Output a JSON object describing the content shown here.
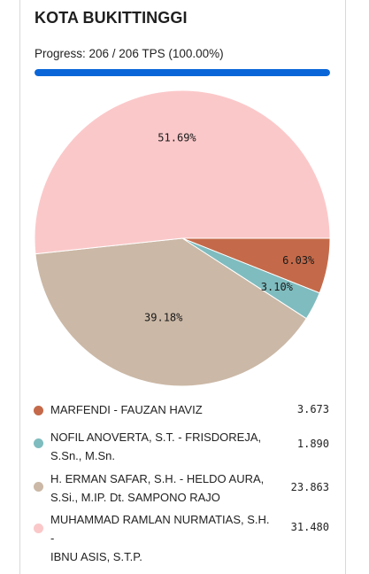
{
  "page": {
    "title": "KOTA BUKITTINGGI"
  },
  "progress": {
    "text": "Progress: 206 / 206 TPS (100.00%)",
    "fraction": 1.0,
    "color": "#0a66d8"
  },
  "chart_data": {
    "type": "pie",
    "slices": [
      {
        "name": "MARFENDI - FAUZAN HAVIZ",
        "value": 3673,
        "value_label": "3.673",
        "percent_label": "6.03%",
        "color": "#c46a4a"
      },
      {
        "name": "NOFIL ANOVERTA, S.T. - FRISDOREJA, S.Sn., M.Sn.",
        "value": 1890,
        "value_label": "1.890",
        "percent_label": "3.10%",
        "color": "#7fbcbf"
      },
      {
        "name": "H. ERMAN SAFAR, S.H. - HELDO AURA, S.Si., M.IP. Dt. SAMPONO RAJO",
        "value": 23863,
        "value_label": "23.863",
        "percent_label": "39.18%",
        "color": "#cbb8a6"
      },
      {
        "name": "MUHAMMAD RAMLAN NURMATIAS, S.H. - IBNU ASIS, S.T.P.",
        "value": 31480,
        "value_label": "31.480",
        "percent_label": "51.69%",
        "color": "#fbc8c9"
      }
    ]
  },
  "legend": {
    "items": [
      {
        "line1": "MARFENDI - FAUZAN HAVIZ",
        "line2": "",
        "value": "3.673"
      },
      {
        "line1": "NOFIL ANOVERTA, S.T. - FRISDOREJA,",
        "line2": "S.Sn., M.Sn.",
        "value": "1.890"
      },
      {
        "line1": "H. ERMAN SAFAR, S.H. - HELDO AURA,",
        "line2": "S.Si., M.IP. Dt. SAMPONO RAJO",
        "value": "23.863"
      },
      {
        "line1": "MUHAMMAD RAMLAN NURMATIAS, S.H. -",
        "line2": "IBNU ASIS, S.T.P.",
        "value": "31.480"
      }
    ]
  }
}
